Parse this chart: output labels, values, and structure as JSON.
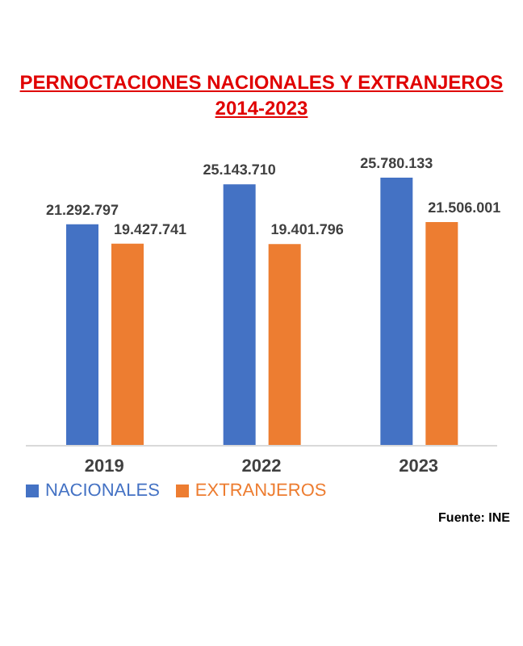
{
  "chart_data": {
    "type": "bar",
    "title": "PERNOCTACIONES NACIONALES Y EXTRANJEROS",
    "subtitle": "2014-2023",
    "categories": [
      "2019",
      "2022",
      "2023"
    ],
    "series": [
      {
        "name": "NACIONALES",
        "color": "#4472c4",
        "values": [
          21292797,
          25143710,
          25780133
        ],
        "value_labels": [
          "21.292.797",
          "25.143.710",
          "25.780.133"
        ]
      },
      {
        "name": "EXTRANJEROS",
        "color": "#ed7d31",
        "values": [
          19427741,
          19401796,
          21506001
        ],
        "value_labels": [
          "19.427.741",
          "19.401.796",
          "21.506.001"
        ]
      }
    ],
    "legend": "bottom",
    "annotations": [
      "Fuente: INE"
    ]
  }
}
